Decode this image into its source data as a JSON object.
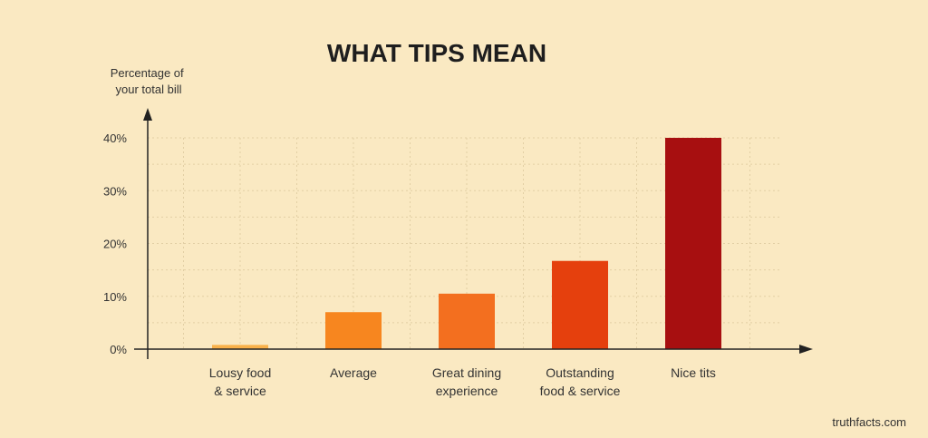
{
  "chart_data": {
    "type": "bar",
    "title": "WHAT TIPS MEAN",
    "ylabel": [
      "Percentage of",
      "your total bill"
    ],
    "xlabel": "",
    "ylim": [
      0,
      40
    ],
    "yticks": [
      {
        "value": 0,
        "label": "0%"
      },
      {
        "value": 10,
        "label": "10%"
      },
      {
        "value": 20,
        "label": "20%"
      },
      {
        "value": 30,
        "label": "30%"
      },
      {
        "value": 40,
        "label": "40%"
      }
    ],
    "categories": [
      [
        "Lousy food",
        "& service"
      ],
      [
        "Average"
      ],
      [
        "Great dining",
        "experience"
      ],
      [
        "Outstanding",
        "food & service"
      ],
      [
        "Nice tits"
      ]
    ],
    "values": [
      0.8,
      7,
      10.5,
      16.7,
      40
    ],
    "colors": [
      "#f9b14a",
      "#f7861f",
      "#f36f1f",
      "#e5400d",
      "#a70f10"
    ],
    "grid": true,
    "source": "truthfacts.com"
  }
}
